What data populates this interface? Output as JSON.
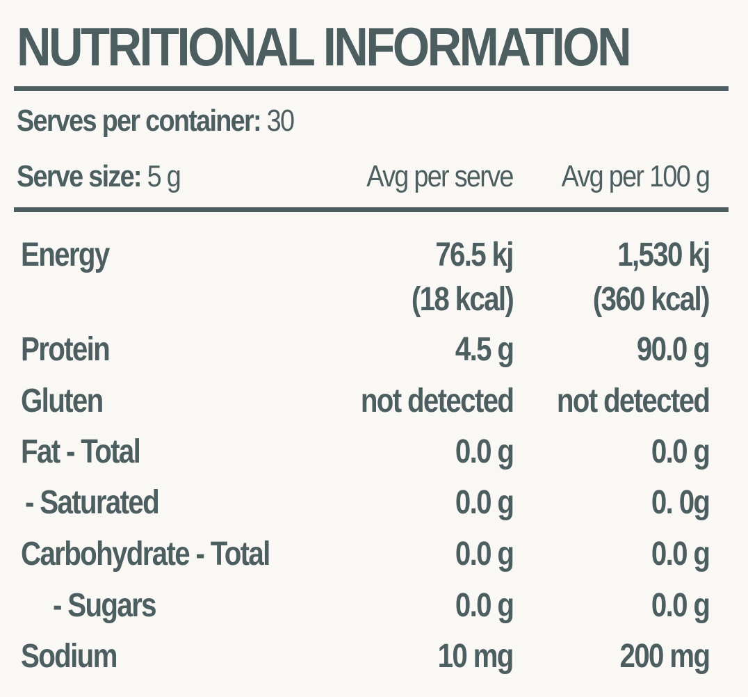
{
  "title": "NUTRITIONAL INFORMATION",
  "serves": {
    "label": "Serves per container:",
    "value": " 30"
  },
  "serve_size": {
    "label": "Serve size:",
    "value": " 5 g"
  },
  "columns": {
    "per_serve": "Avg per serve",
    "per_100g": "Avg per 100 g"
  },
  "rows": [
    {
      "name": "Energy",
      "per_serve": "76.5 kj",
      "per_serve_sub": "(18 kcal)",
      "per_100g": "1,530 kj",
      "per_100g_sub": "(360 kcal)"
    },
    {
      "name": "Protein",
      "per_serve": "4.5 g",
      "per_100g": "90.0 g"
    },
    {
      "name": "Gluten",
      "per_serve": "not detected",
      "per_100g": "not detected"
    },
    {
      "name": "Fat - Total",
      "per_serve": "0.0 g",
      "per_100g": "0.0 g"
    },
    {
      "name": " - Saturated",
      "per_serve": "0.0 g",
      "per_100g": "0. 0g"
    },
    {
      "name": "Carbohydrate - Total",
      "per_serve": "0.0 g",
      "per_100g": "0.0 g"
    },
    {
      "name": "- Sugars",
      "per_serve": "0.0 g",
      "per_100g": "0.0 g"
    },
    {
      "name": "Sodium",
      "per_serve": "10 mg",
      "per_100g": "200 mg"
    }
  ],
  "colors": {
    "ink": "#4d5e61",
    "background": "#faf8f5"
  }
}
